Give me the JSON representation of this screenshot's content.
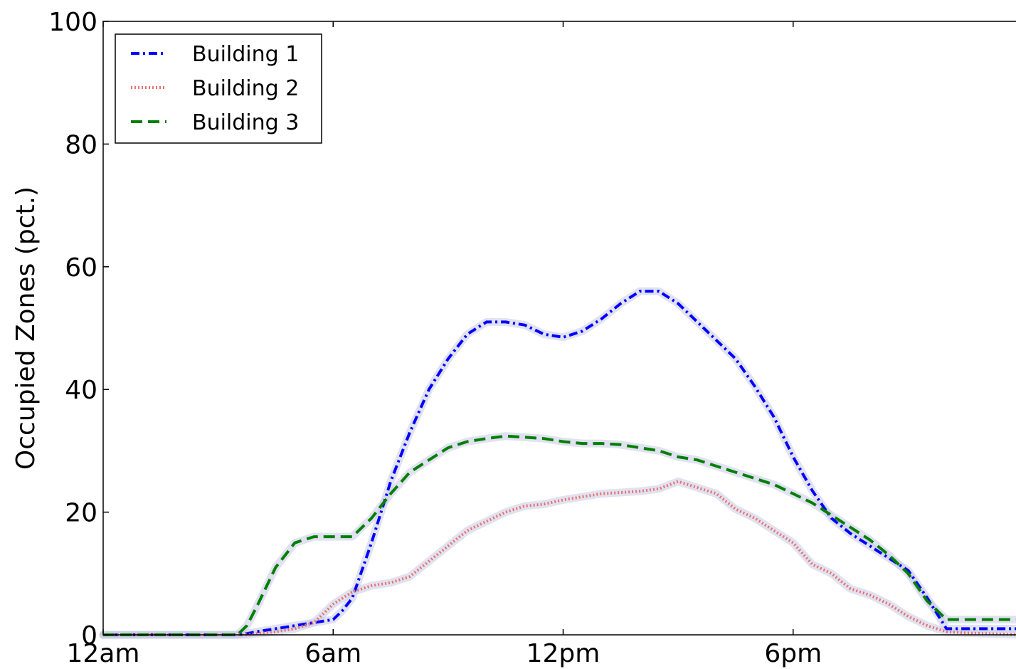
{
  "chart_data": {
    "type": "line",
    "title": "",
    "xlabel": "",
    "ylabel": "Occupied Zones (pct.)",
    "xlim": [
      0,
      24
    ],
    "ylim": [
      0,
      100
    ],
    "x_ticks": [
      {
        "value": 0,
        "label": "12am"
      },
      {
        "value": 6,
        "label": "6am"
      },
      {
        "value": 12,
        "label": "12pm"
      },
      {
        "value": 18,
        "label": "6pm"
      }
    ],
    "y_ticks": [
      0,
      20,
      40,
      60,
      80,
      100
    ],
    "grid": false,
    "legend": "top-left",
    "x": [
      0,
      1,
      2,
      3,
      3.5,
      3.75,
      4,
      4.5,
      5,
      5.5,
      6,
      6.25,
      6.5,
      7,
      7.5,
      8,
      8.5,
      9,
      9.5,
      10,
      10.5,
      11,
      11.5,
      12,
      12.5,
      13,
      13.5,
      14,
      14.5,
      15,
      15.5,
      16,
      16.5,
      17,
      17.5,
      18,
      18.5,
      19,
      19.5,
      20,
      20.5,
      21,
      21.5,
      22,
      22.5,
      23,
      23.5,
      24
    ],
    "series": [
      {
        "name": "Building 1",
        "color": "#0000ff",
        "style": "dashdot",
        "values": [
          0,
          0,
          0,
          0,
          0,
          0.2,
          0.5,
          1,
          1.5,
          2,
          2.5,
          4,
          6,
          15,
          25,
          33,
          40,
          45,
          49,
          51,
          51,
          50.5,
          49,
          48.5,
          49.5,
          51.5,
          54,
          56,
          56,
          54,
          51,
          48,
          45,
          40.5,
          35.5,
          29,
          23.5,
          19,
          16.5,
          14.5,
          12.5,
          10.5,
          6,
          1,
          1,
          1,
          1,
          1
        ]
      },
      {
        "name": "Building 2",
        "color": "#e8746c",
        "style": "dotted",
        "values": [
          0,
          0,
          0,
          0,
          0,
          0,
          0.2,
          0.5,
          1,
          2,
          5,
          6,
          7,
          8,
          8.5,
          9.5,
          12,
          14.5,
          17,
          18.5,
          20,
          21,
          21.3,
          22,
          22.5,
          23,
          23.2,
          23.4,
          23.8,
          25,
          24,
          23,
          20.5,
          19,
          17,
          15,
          11.5,
          10,
          7.5,
          6.5,
          5,
          3,
          1.5,
          0.5,
          0.3,
          0.2,
          0.1,
          0
        ]
      },
      {
        "name": "Building 3",
        "color": "#007f00",
        "style": "dashed",
        "values": [
          0,
          0,
          0,
          0,
          0,
          1.5,
          4.5,
          11,
          15,
          16,
          16,
          16,
          16,
          19,
          23,
          26.5,
          28.5,
          30.5,
          31.5,
          32,
          32.4,
          32.2,
          32,
          31.5,
          31.2,
          31.2,
          31,
          30.5,
          30,
          29,
          28.5,
          27.5,
          26.5,
          25.5,
          24.5,
          23,
          21.5,
          19.5,
          17.5,
          15.5,
          13,
          10,
          5.5,
          2.5,
          2.5,
          2.5,
          2.5,
          2.5
        ]
      }
    ]
  }
}
